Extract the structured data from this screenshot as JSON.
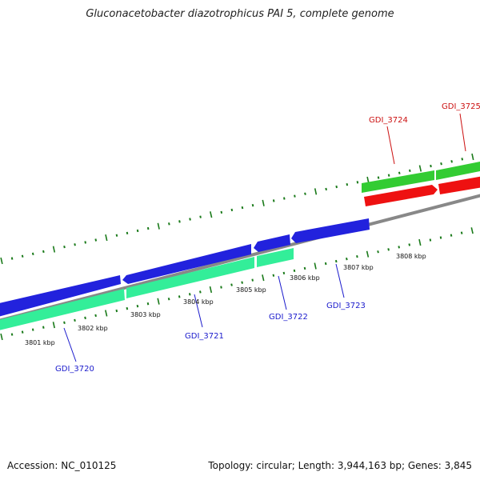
{
  "title": "Gluconacetobacter diazotrophicus PAI 5, complete genome",
  "footer": {
    "accession": "Accession: NC_010125",
    "info": "Topology: circular; Length: 3,944,163 bp; Genes: 3,845"
  },
  "kbp_labels": [
    {
      "text": "3801 kbp",
      "pos": 3801.0
    },
    {
      "text": "3802 kbp",
      "pos": 3802.0
    },
    {
      "text": "3803 kbp",
      "pos": 3803.0
    },
    {
      "text": "3804 kbp",
      "pos": 3804.0
    },
    {
      "text": "3805 kbp",
      "pos": 3805.0
    },
    {
      "text": "3806 kbp",
      "pos": 3806.0
    },
    {
      "text": "3807 kbp",
      "pos": 3807.0
    },
    {
      "text": "3808 kbp",
      "pos": 3808.0
    }
  ],
  "gene_labels": [
    {
      "text": "GDI_3720",
      "color": "#1a1acc"
    },
    {
      "text": "GDI_3721",
      "color": "#1a1acc"
    },
    {
      "text": "GDI_3722",
      "color": "#1a1acc"
    },
    {
      "text": "GDI_3723",
      "color": "#1a1acc"
    },
    {
      "text": "GDI_3724",
      "color": "#cc1111"
    },
    {
      "text": "GDI_3725",
      "color": "#cc1111"
    }
  ],
  "colors": {
    "cds_forward": "#2222dd",
    "cds_reverse": "#ee1111",
    "gene_forward": "#33ee99",
    "gene_reverse": "#33cc33",
    "backbone": "#888888",
    "ticks": "#1a7a1a"
  }
}
